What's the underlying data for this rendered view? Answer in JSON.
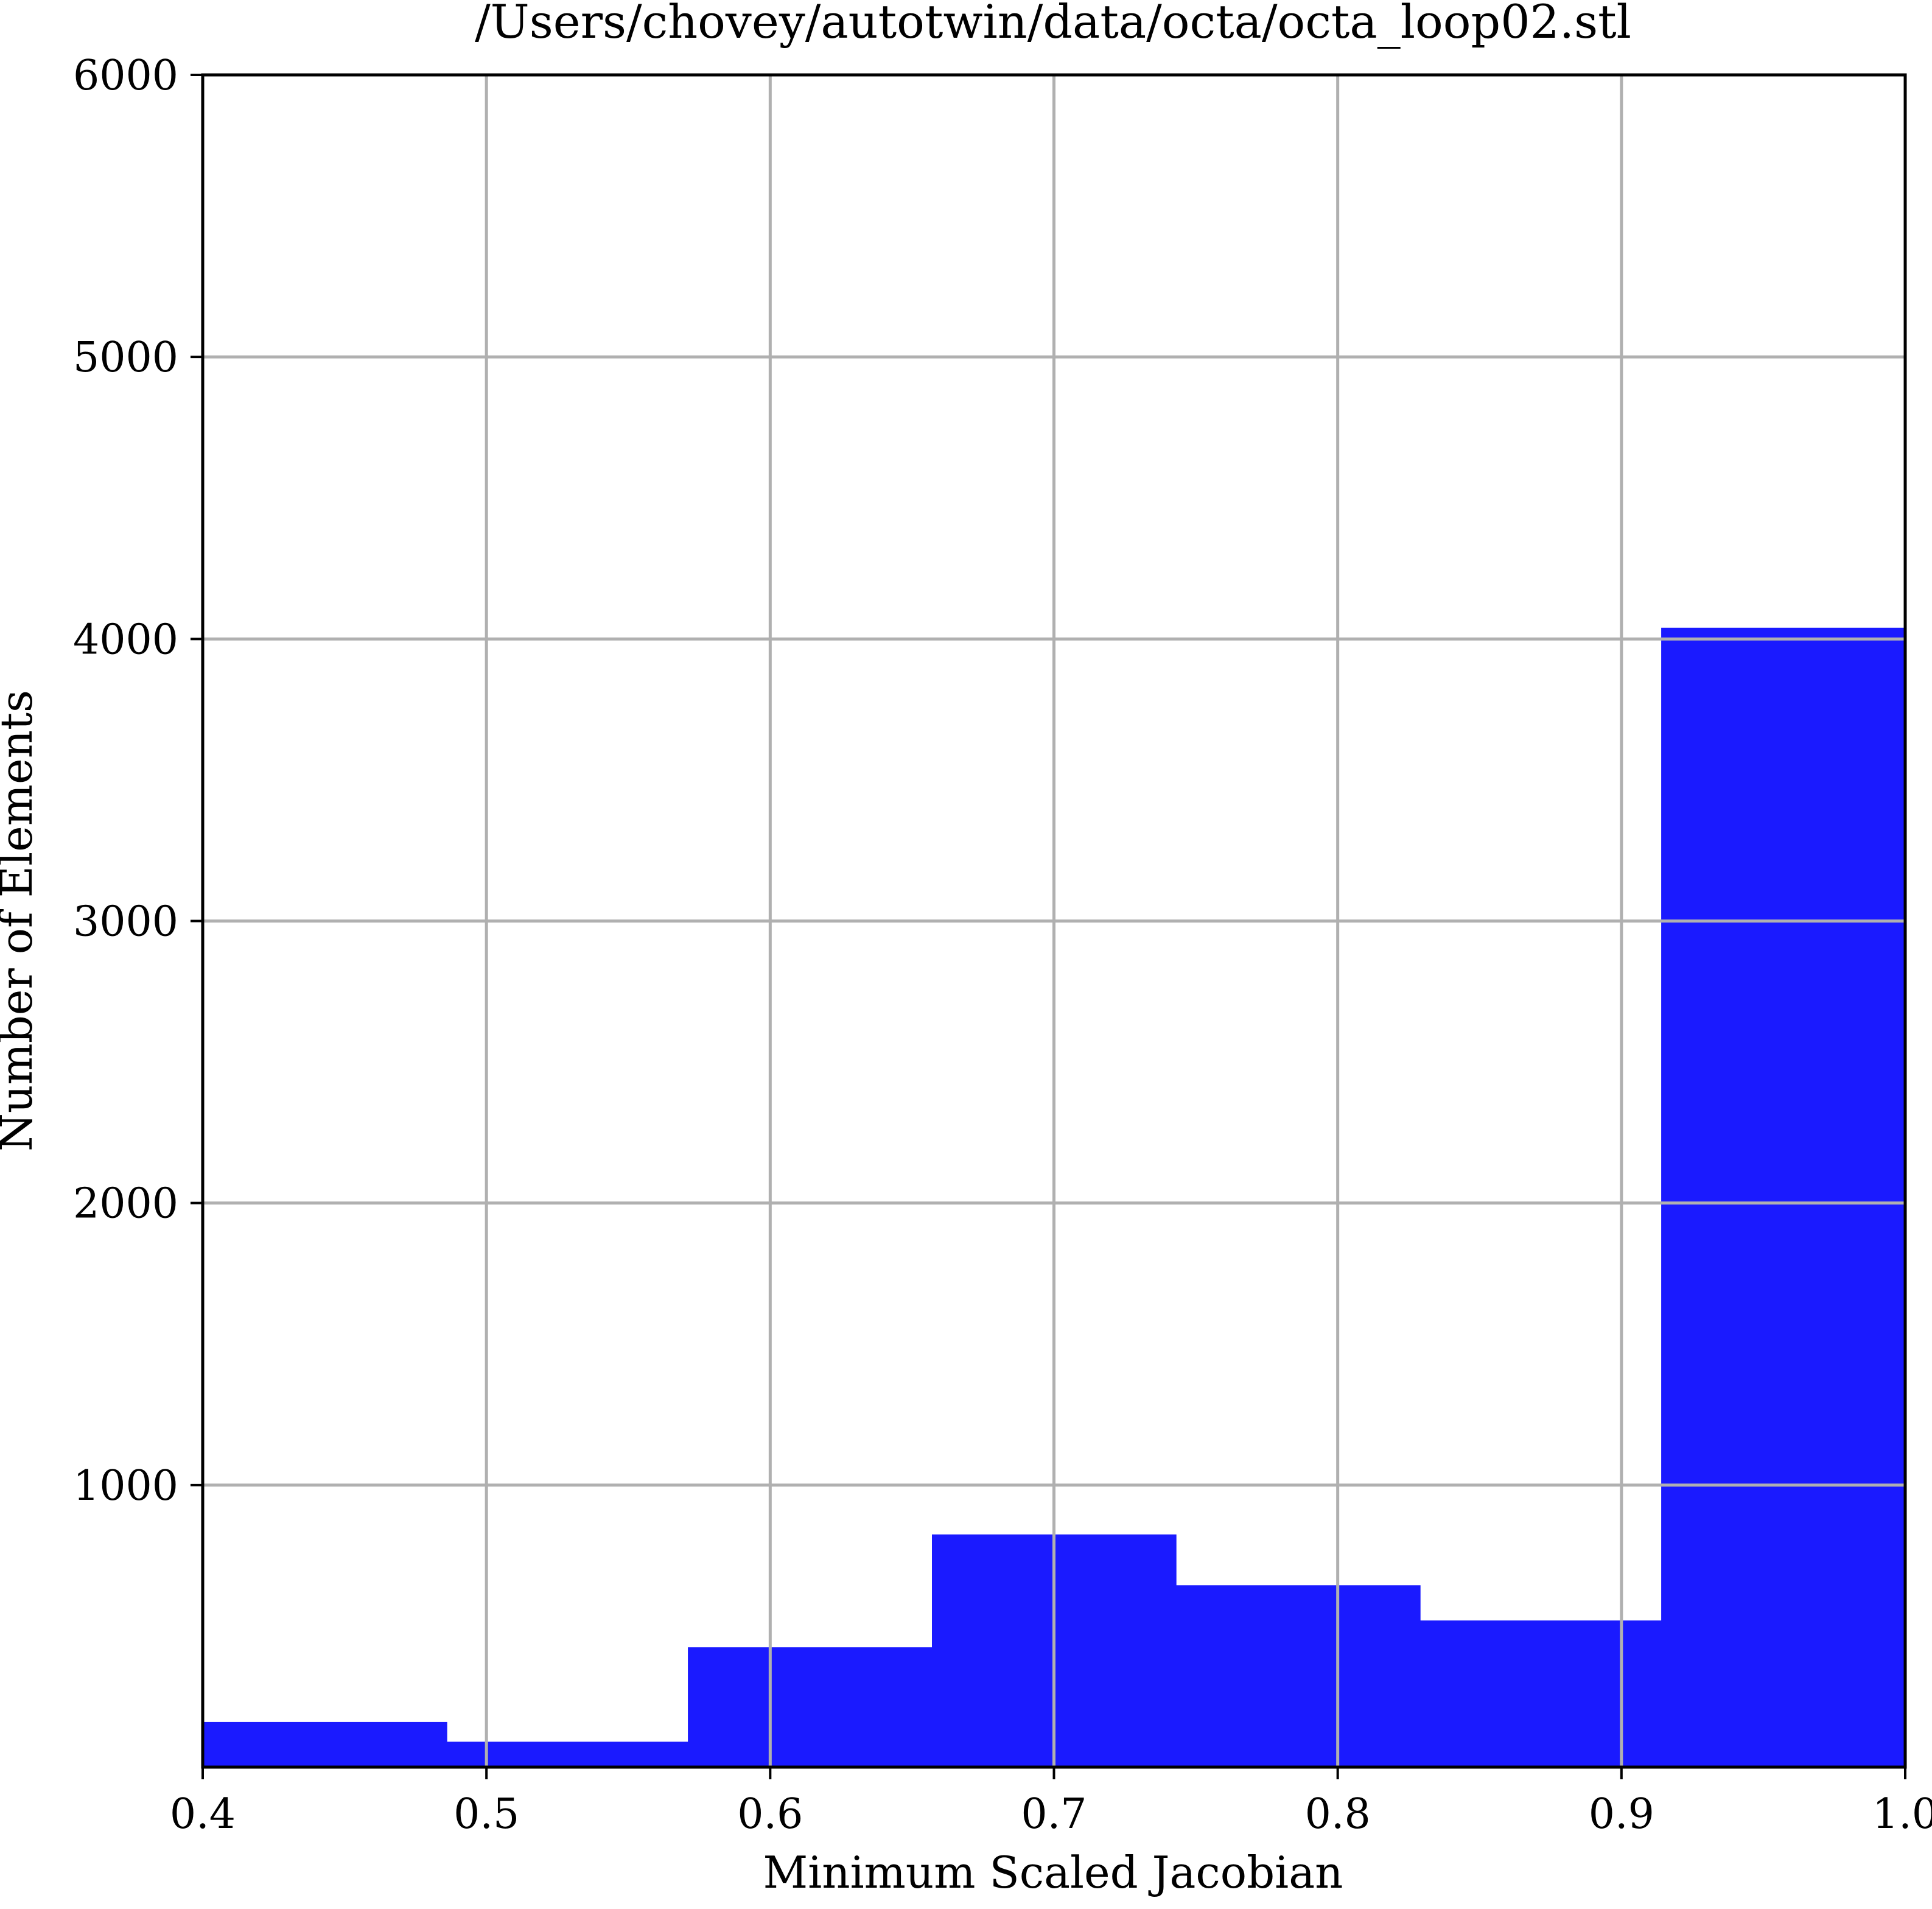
{
  "chart_data": {
    "type": "bar",
    "subtype": "histogram",
    "title": "/Users/chovey/autotwin/data/octa/octa_loop02.stl",
    "xlabel": "Minimum Scaled Jacobian",
    "ylabel": "Number of Elements",
    "xlim": [
      0.4,
      1.0
    ],
    "ylim": [
      0,
      6000
    ],
    "xticks": [
      "0.4",
      "0.5",
      "0.6",
      "0.7",
      "0.8",
      "0.9",
      "1.0"
    ],
    "yticks": [
      "1000",
      "2000",
      "3000",
      "4000",
      "5000",
      "6000"
    ],
    "grid": true,
    "bar_color": "#1a1aff",
    "bins": [
      {
        "x0": 0.4,
        "x1": 0.486,
        "count": 160
      },
      {
        "x0": 0.486,
        "x1": 0.571,
        "count": 90
      },
      {
        "x0": 0.571,
        "x1": 0.657,
        "count": 425
      },
      {
        "x0": 0.657,
        "x1": 0.743,
        "count": 825
      },
      {
        "x0": 0.743,
        "x1": 0.829,
        "count": 645
      },
      {
        "x0": 0.829,
        "x1": 0.914,
        "count": 520
      },
      {
        "x0": 0.914,
        "x1": 1.0,
        "count": 4040
      }
    ]
  }
}
